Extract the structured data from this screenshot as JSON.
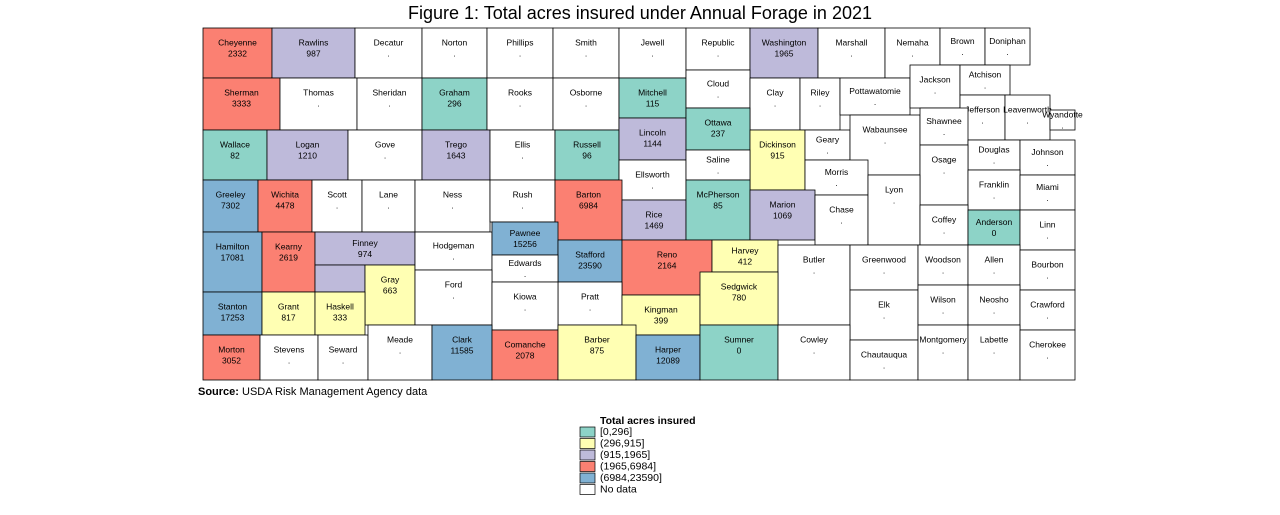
{
  "chart_data": {
    "type": "choropleth",
    "title": "Figure 1: Total acres insured under Annual Forage in 2021",
    "source": {
      "label": "Source:",
      "text": "USDA Risk Management Agency data"
    },
    "legend": {
      "title": "Total acres insured",
      "items": [
        {
          "label": "[0,296]",
          "range": [
            0,
            296
          ],
          "color": "#8dd3c7"
        },
        {
          "label": "(296,915]",
          "range": [
            296,
            915
          ],
          "color": "#ffffb3"
        },
        {
          "label": "(915,1965]",
          "range": [
            915,
            1965
          ],
          "color": "#bebada"
        },
        {
          "label": "(1965,6984]",
          "range": [
            1965,
            6984
          ],
          "color": "#fb8072"
        },
        {
          "label": "(6984,23590]",
          "range": [
            6984,
            23590
          ],
          "color": "#80b1d3"
        },
        {
          "label": "No data",
          "color": "#ffffff"
        }
      ]
    },
    "counties": [
      {
        "name": "Cheyenne",
        "value": 2332
      },
      {
        "name": "Rawlins",
        "value": 987
      },
      {
        "name": "Decatur",
        "value": "."
      },
      {
        "name": "Norton",
        "value": "."
      },
      {
        "name": "Phillips",
        "value": "."
      },
      {
        "name": "Smith",
        "value": "."
      },
      {
        "name": "Jewell",
        "value": "."
      },
      {
        "name": "Republic",
        "value": "."
      },
      {
        "name": "Washington",
        "value": 1965
      },
      {
        "name": "Marshall",
        "value": "."
      },
      {
        "name": "Nemaha",
        "value": "."
      },
      {
        "name": "Brown",
        "value": "."
      },
      {
        "name": "Doniphan",
        "value": "."
      },
      {
        "name": "Sherman",
        "value": 3333
      },
      {
        "name": "Thomas",
        "value": "."
      },
      {
        "name": "Sheridan",
        "value": "."
      },
      {
        "name": "Graham",
        "value": 296
      },
      {
        "name": "Rooks",
        "value": "."
      },
      {
        "name": "Osborne",
        "value": "."
      },
      {
        "name": "Mitchell",
        "value": 115
      },
      {
        "name": "Cloud",
        "value": "."
      },
      {
        "name": "Clay",
        "value": "."
      },
      {
        "name": "Riley",
        "value": "."
      },
      {
        "name": "Pottawatomie",
        "value": "."
      },
      {
        "name": "Jackson",
        "value": "."
      },
      {
        "name": "Atchison",
        "value": "."
      },
      {
        "name": "Jefferson",
        "value": "."
      },
      {
        "name": "Leavenworth",
        "value": "."
      },
      {
        "name": "Wyandotte",
        "value": "."
      },
      {
        "name": "Wallace",
        "value": 82
      },
      {
        "name": "Logan",
        "value": 1210
      },
      {
        "name": "Gove",
        "value": "."
      },
      {
        "name": "Trego",
        "value": 1643
      },
      {
        "name": "Ellis",
        "value": "."
      },
      {
        "name": "Russell",
        "value": 96
      },
      {
        "name": "Lincoln",
        "value": 1144
      },
      {
        "name": "Ottawa",
        "value": 237
      },
      {
        "name": "Dickinson",
        "value": 915
      },
      {
        "name": "Geary",
        "value": "."
      },
      {
        "name": "Wabaunsee",
        "value": "."
      },
      {
        "name": "Shawnee",
        "value": "."
      },
      {
        "name": "Douglas",
        "value": "."
      },
      {
        "name": "Johnson",
        "value": "."
      },
      {
        "name": "Ellsworth",
        "value": "."
      },
      {
        "name": "Saline",
        "value": "."
      },
      {
        "name": "Morris",
        "value": "."
      },
      {
        "name": "Osage",
        "value": "."
      },
      {
        "name": "Franklin",
        "value": "."
      },
      {
        "name": "Miami",
        "value": "."
      },
      {
        "name": "Greeley",
        "value": 7302
      },
      {
        "name": "Wichita",
        "value": 4478
      },
      {
        "name": "Scott",
        "value": "."
      },
      {
        "name": "Lane",
        "value": "."
      },
      {
        "name": "Ness",
        "value": "."
      },
      {
        "name": "Rush",
        "value": "."
      },
      {
        "name": "Barton",
        "value": 6984
      },
      {
        "name": "Rice",
        "value": 1469
      },
      {
        "name": "McPherson",
        "value": 85
      },
      {
        "name": "Marion",
        "value": 1069
      },
      {
        "name": "Chase",
        "value": "."
      },
      {
        "name": "Lyon",
        "value": "."
      },
      {
        "name": "Coffey",
        "value": "."
      },
      {
        "name": "Anderson",
        "value": 0
      },
      {
        "name": "Linn",
        "value": "."
      },
      {
        "name": "Hamilton",
        "value": 17081
      },
      {
        "name": "Kearny",
        "value": 2619
      },
      {
        "name": "Finney",
        "value": 974
      },
      {
        "name": "Gray",
        "value": 663
      },
      {
        "name": "Hodgeman",
        "value": "."
      },
      {
        "name": "Pawnee",
        "value": 15256
      },
      {
        "name": "Stafford",
        "value": 23590
      },
      {
        "name": "Reno",
        "value": 2164
      },
      {
        "name": "Harvey",
        "value": 412
      },
      {
        "name": "Butler",
        "value": "."
      },
      {
        "name": "Greenwood",
        "value": "."
      },
      {
        "name": "Woodson",
        "value": "."
      },
      {
        "name": "Allen",
        "value": "."
      },
      {
        "name": "Bourbon",
        "value": "."
      },
      {
        "name": "Edwards",
        "value": "."
      },
      {
        "name": "Ford",
        "value": "."
      },
      {
        "name": "Pratt",
        "value": "."
      },
      {
        "name": "Kingman",
        "value": 399
      },
      {
        "name": "Sedgwick",
        "value": 780
      },
      {
        "name": "Stanton",
        "value": 17253
      },
      {
        "name": "Grant",
        "value": 817
      },
      {
        "name": "Haskell",
        "value": 333
      },
      {
        "name": "Kiowa",
        "value": "."
      },
      {
        "name": "Elk",
        "value": "."
      },
      {
        "name": "Wilson",
        "value": "."
      },
      {
        "name": "Neosho",
        "value": "."
      },
      {
        "name": "Crawford",
        "value": "."
      },
      {
        "name": "Morton",
        "value": 3052
      },
      {
        "name": "Stevens",
        "value": "."
      },
      {
        "name": "Seward",
        "value": "."
      },
      {
        "name": "Meade",
        "value": "."
      },
      {
        "name": "Clark",
        "value": 11585
      },
      {
        "name": "Comanche",
        "value": 2078
      },
      {
        "name": "Barber",
        "value": 875
      },
      {
        "name": "Harper",
        "value": 12089
      },
      {
        "name": "Sumner",
        "value": 0
      },
      {
        "name": "Cowley",
        "value": "."
      },
      {
        "name": "Chautauqua",
        "value": "."
      },
      {
        "name": "Montgomery",
        "value": "."
      },
      {
        "name": "Labette",
        "value": "."
      },
      {
        "name": "Cherokee",
        "value": "."
      }
    ]
  }
}
